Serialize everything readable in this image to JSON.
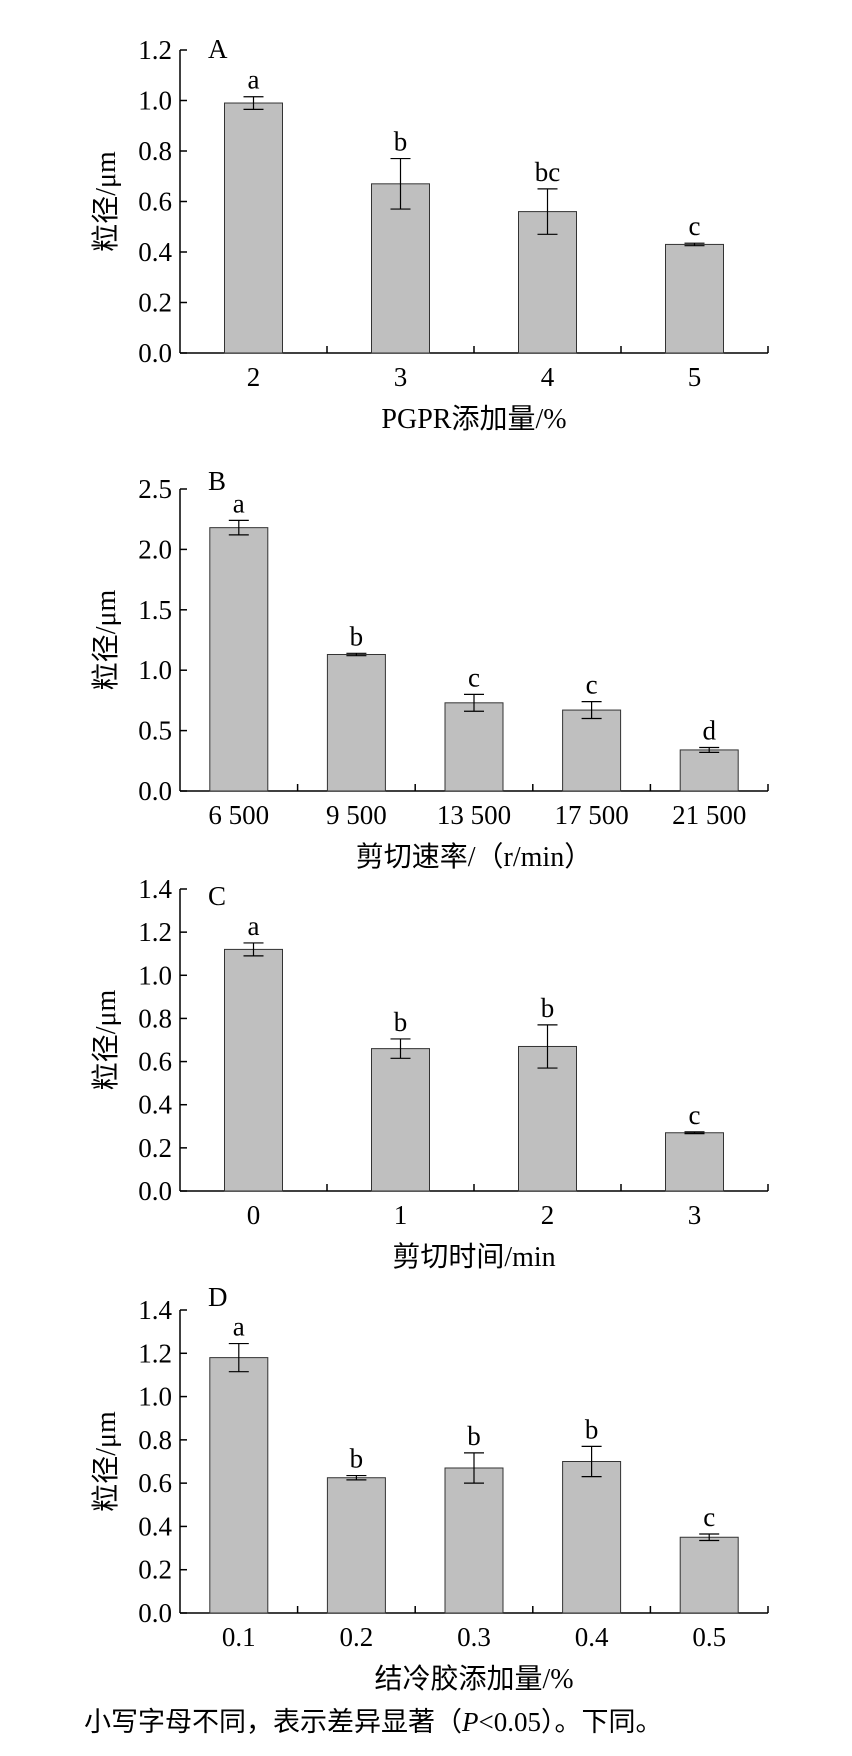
{
  "chart_data": [
    {
      "type": "bar",
      "panel_label": "A",
      "xlabel": "PGPR添加量/%",
      "ylabel": "粒径/μm",
      "categories": [
        "2",
        "3",
        "4",
        "5"
      ],
      "values": [
        0.99,
        0.67,
        0.56,
        0.43
      ],
      "errors": [
        0.025,
        0.1,
        0.09,
        0.005
      ],
      "significance": [
        "a",
        "b",
        "bc",
        "c"
      ],
      "ylim": [
        0,
        1.2
      ],
      "yticks": [
        "0.0",
        "0.2",
        "0.4",
        "0.6",
        "0.8",
        "1.0",
        "1.2"
      ],
      "bar_color": "#bfbfbf"
    },
    {
      "type": "bar",
      "panel_label": "B",
      "xlabel": "剪切速率/（r/min）",
      "ylabel": "粒径/μm",
      "categories": [
        "6 500",
        "9 500",
        "13 500",
        "17 500",
        "21 500"
      ],
      "values": [
        2.18,
        1.13,
        0.73,
        0.67,
        0.34
      ],
      "errors": [
        0.06,
        0.01,
        0.07,
        0.07,
        0.02
      ],
      "significance": [
        "a",
        "b",
        "c",
        "c",
        "d"
      ],
      "ylim": [
        0,
        2.5
      ],
      "yticks": [
        "0.0",
        "0.5",
        "1.0",
        "1.5",
        "2.0",
        "2.5"
      ],
      "bar_color": "#bfbfbf"
    },
    {
      "type": "bar",
      "panel_label": "C",
      "xlabel": "剪切时间/min",
      "ylabel": "粒径/μm",
      "categories": [
        "0",
        "1",
        "2",
        "3"
      ],
      "values": [
        1.12,
        0.66,
        0.67,
        0.27
      ],
      "errors": [
        0.03,
        0.045,
        0.1,
        0.004
      ],
      "significance": [
        "a",
        "b",
        "b",
        "c"
      ],
      "ylim": [
        0,
        1.4
      ],
      "yticks": [
        "0.0",
        "0.2",
        "0.4",
        "0.6",
        "0.8",
        "1.0",
        "1.2",
        "1.4"
      ],
      "bar_color": "#bfbfbf"
    },
    {
      "type": "bar",
      "panel_label": "D",
      "xlabel": "结冷胶添加量/%",
      "ylabel": "粒径/μm",
      "categories": [
        "0.1",
        "0.2",
        "0.3",
        "0.4",
        "0.5"
      ],
      "values": [
        1.18,
        0.625,
        0.67,
        0.7,
        0.35
      ],
      "errors": [
        0.065,
        0.01,
        0.07,
        0.07,
        0.015
      ],
      "significance": [
        "a",
        "b",
        "b",
        "b",
        "c"
      ],
      "ylim": [
        0,
        1.4
      ],
      "yticks": [
        "0.0",
        "0.2",
        "0.4",
        "0.6",
        "0.8",
        "1.0",
        "1.2",
        "1.4"
      ],
      "bar_color": "#bfbfbf"
    }
  ],
  "caption": {
    "main": "小写字母不同，表示差异显著（",
    "p_symbol": "P",
    "rest": "<0.05）。下同。"
  }
}
